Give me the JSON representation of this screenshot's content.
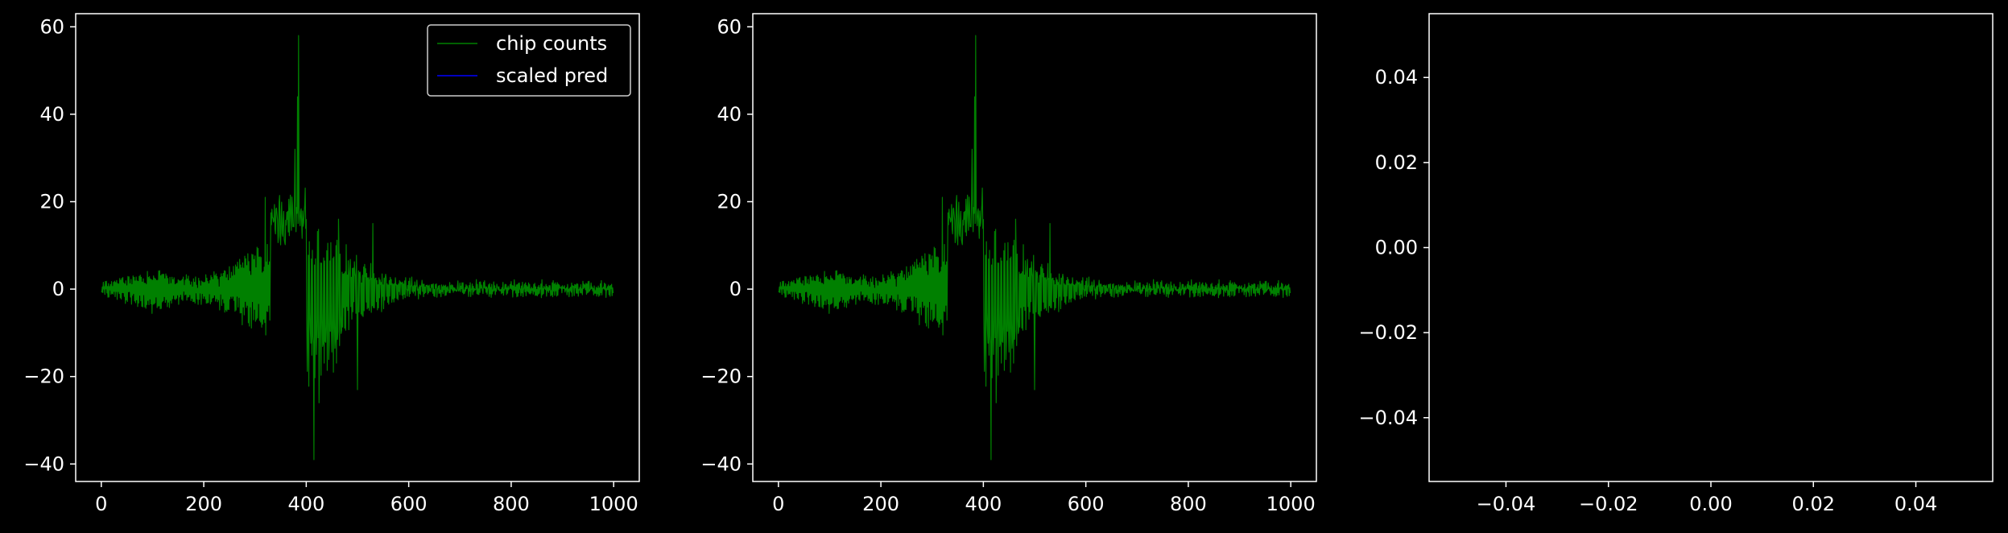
{
  "figure": {
    "background": "#000000",
    "foreground": "#ffffff"
  },
  "chart_data": [
    {
      "type": "line",
      "title": "",
      "xlabel": "",
      "ylabel": "",
      "xlim": [
        -50,
        1050
      ],
      "ylim": [
        -44,
        63
      ],
      "xticks": [
        0,
        200,
        400,
        600,
        800,
        1000
      ],
      "yticks": [
        -40,
        -20,
        0,
        20,
        40,
        60
      ],
      "grid": false,
      "legend": {
        "placement": "upper right",
        "entries": [
          {
            "label": "chip counts",
            "color": "#008000"
          },
          {
            "label": "scaled pred",
            "color": "#0000ff"
          }
        ]
      },
      "series": [
        {
          "name": "chip counts",
          "color": "#008000",
          "values": "waveform"
        },
        {
          "name": "scaled pred",
          "color": "#0000ff",
          "values": []
        }
      ],
      "waveform": {
        "n_points": 1000,
        "peak": {
          "x": 385,
          "y": 58
        },
        "trough": {
          "x": 415,
          "y": -39
        },
        "description_points": [
          [
            0,
            1
          ],
          [
            50,
            -1
          ],
          [
            100,
            2
          ],
          [
            150,
            1
          ],
          [
            200,
            0
          ],
          [
            250,
            2
          ],
          [
            300,
            8
          ],
          [
            320,
            21
          ],
          [
            350,
            15
          ],
          [
            370,
            32
          ],
          [
            380,
            44
          ],
          [
            385,
            58
          ],
          [
            395,
            30
          ],
          [
            405,
            -17
          ],
          [
            415,
            -39
          ],
          [
            425,
            -22
          ],
          [
            450,
            -25
          ],
          [
            480,
            -15
          ],
          [
            500,
            -23
          ],
          [
            520,
            15
          ],
          [
            550,
            10
          ],
          [
            600,
            4
          ],
          [
            650,
            5
          ],
          [
            700,
            2
          ],
          [
            800,
            1
          ],
          [
            900,
            1
          ],
          [
            1000,
            0
          ]
        ]
      }
    },
    {
      "type": "line",
      "title": "",
      "xlabel": "",
      "ylabel": "",
      "xlim": [
        -50,
        1050
      ],
      "ylim": [
        -44,
        63
      ],
      "xticks": [
        0,
        200,
        400,
        600,
        800,
        1000
      ],
      "yticks": [
        -40,
        -20,
        0,
        20,
        40,
        60
      ],
      "grid": false,
      "series": [
        {
          "name": "",
          "color": "#008000",
          "values": "waveform"
        }
      ]
    },
    {
      "type": "line",
      "title": "",
      "xlabel": "",
      "ylabel": "",
      "xlim": [
        -0.055,
        0.055
      ],
      "ylim": [
        -0.055,
        0.055
      ],
      "xticks": [
        -0.04,
        -0.02,
        0.0,
        0.02,
        0.04
      ],
      "yticks": [
        -0.04,
        -0.02,
        0.0,
        0.02,
        0.04
      ],
      "xtick_labels": [
        "−0.04",
        "−0.02",
        "0.00",
        "0.02",
        "0.04"
      ],
      "ytick_labels": [
        "−0.04",
        "−0.02",
        "0.00",
        "0.02",
        "0.04"
      ],
      "grid": false,
      "series": []
    }
  ]
}
